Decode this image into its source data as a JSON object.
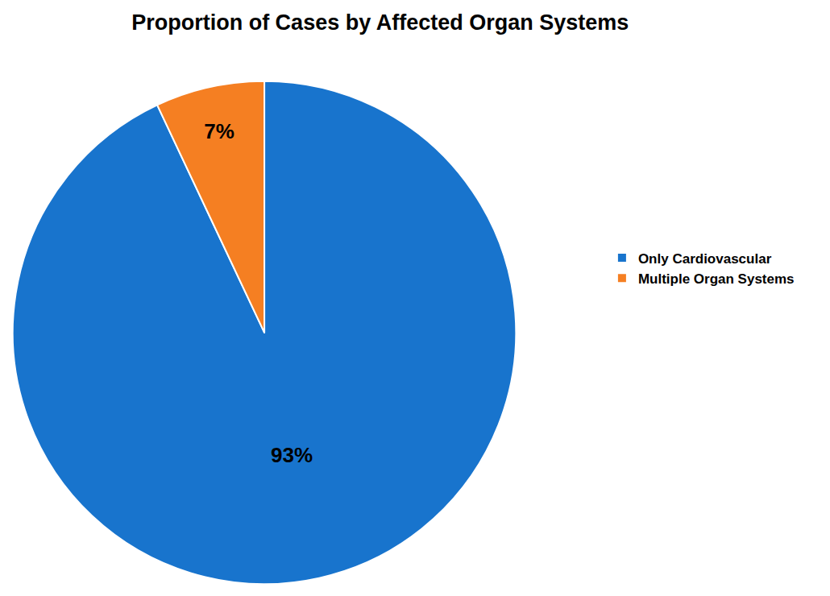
{
  "chart_data": {
    "type": "pie",
    "title": "Proportion of Cases by Affected Organ Systems",
    "categories": [
      "Only Cardiovascular",
      "Multiple Organ Systems"
    ],
    "values": [
      93,
      7
    ],
    "value_labels": [
      "93%",
      "7%"
    ],
    "colors": [
      "#1874CD",
      "#F57F22"
    ],
    "data_labels": true,
    "legend": "right"
  }
}
